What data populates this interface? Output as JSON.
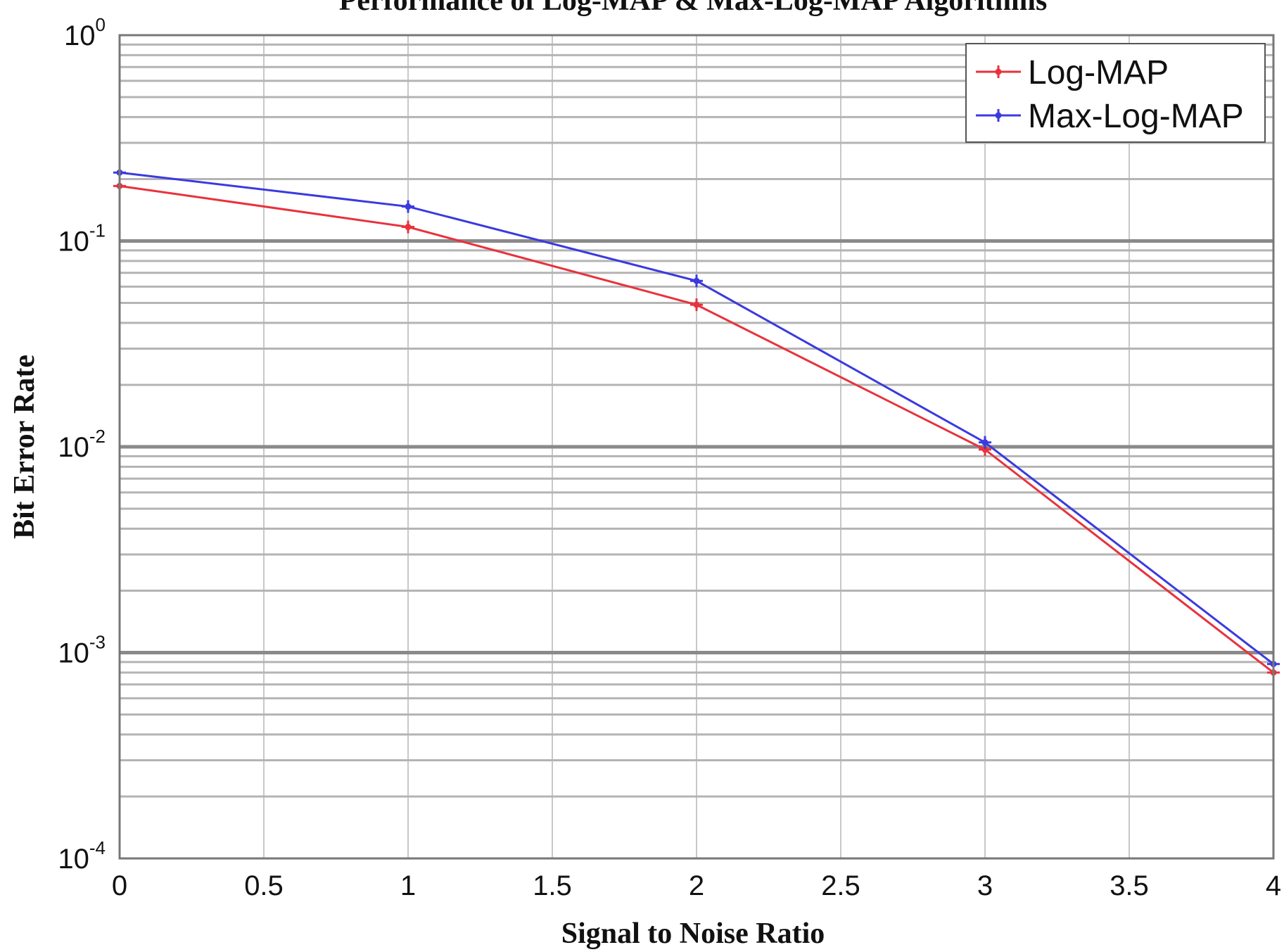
{
  "chart_data": {
    "type": "line",
    "title": "Performance of Log-MAP & Max-Log-MAP Algorithms",
    "xlabel": "Signal to Noise Ratio",
    "ylabel": "Bit Error Rate",
    "xlim": [
      0,
      4
    ],
    "ylim": [
      0.0001,
      1
    ],
    "yscale": "log",
    "grid": true,
    "legend_position": "top-right",
    "x_ticks": [
      "0",
      "0.5",
      "1",
      "1.5",
      "2",
      "2.5",
      "3",
      "3.5",
      "4"
    ],
    "y_ticks": [
      {
        "base": "10",
        "exp": "0"
      },
      {
        "base": "10",
        "exp": "-1"
      },
      {
        "base": "10",
        "exp": "-2"
      },
      {
        "base": "10",
        "exp": "-3"
      },
      {
        "base": "10",
        "exp": "-4"
      }
    ],
    "x": [
      0,
      1,
      2,
      3,
      4
    ],
    "series": [
      {
        "name": "Log-MAP",
        "color": "#e8323c",
        "values": [
          0.185,
          0.117,
          0.049,
          0.0097,
          0.0008
        ]
      },
      {
        "name": "Max-Log-MAP",
        "color": "#3a3adf",
        "values": [
          0.215,
          0.147,
          0.064,
          0.0105,
          0.00088
        ]
      }
    ]
  }
}
